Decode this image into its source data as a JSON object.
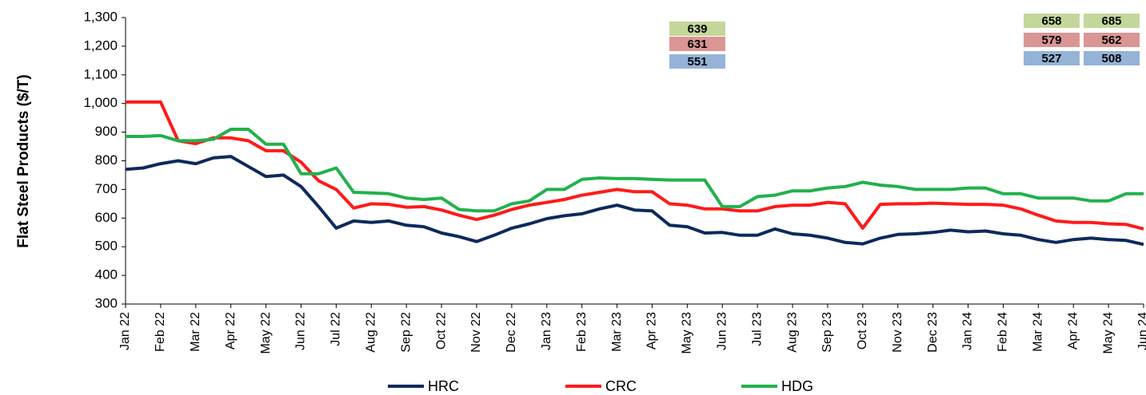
{
  "chart_data": {
    "type": "line",
    "y_label": "Flat Steel Products ($/T)",
    "categories": [
      "Jan 22",
      null,
      "Feb 22",
      null,
      "Mar 22",
      null,
      "Apr 22",
      null,
      "May 22",
      null,
      "Jun 22",
      null,
      "Jul 22",
      null,
      "Aug 22",
      null,
      "Sep 22",
      null,
      "Oct 22",
      null,
      "Nov 22",
      null,
      "Dec 22",
      null,
      "Jan 23",
      null,
      "Feb 23",
      null,
      "Mar 23",
      null,
      "Apr 23",
      null,
      "May 23",
      null,
      "Jun 23",
      null,
      "Jul 23",
      null,
      "Aug 23",
      null,
      "Sep 23",
      null,
      "Oct 23",
      null,
      "Nov 23",
      null,
      "Dec 23",
      null,
      "Jan 24",
      null,
      "Feb 24",
      null,
      "Mar 24",
      null,
      "Apr 24",
      null,
      "May 24",
      null,
      "Jun 24"
    ],
    "series": [
      {
        "name": "HRC",
        "color": "#0d2a5c",
        "values": [
          770,
          775,
          790,
          800,
          790,
          810,
          815,
          780,
          745,
          750,
          710,
          640,
          565,
          590,
          585,
          590,
          575,
          570,
          548,
          535,
          518,
          540,
          565,
          580,
          598,
          608,
          615,
          632,
          645,
          628,
          625,
          575,
          570,
          548,
          550,
          540,
          540,
          562,
          545,
          540,
          530,
          515,
          510,
          530,
          543,
          545,
          550,
          558,
          552,
          555,
          545,
          540,
          525,
          515,
          525,
          530,
          525,
          522,
          508
        ]
      },
      {
        "name": "CRC",
        "color": "#ff1a1a",
        "values": [
          1005,
          1005,
          1005,
          870,
          860,
          880,
          880,
          870,
          835,
          835,
          795,
          730,
          700,
          635,
          650,
          648,
          638,
          640,
          628,
          610,
          595,
          610,
          630,
          645,
          655,
          665,
          680,
          690,
          700,
          692,
          692,
          650,
          645,
          632,
          632,
          625,
          625,
          640,
          645,
          645,
          655,
          650,
          565,
          648,
          650,
          650,
          652,
          650,
          648,
          648,
          645,
          632,
          610,
          590,
          585,
          585,
          580,
          578,
          562
        ]
      },
      {
        "name": "HDG",
        "color": "#22b14c",
        "values": [
          885,
          885,
          888,
          870,
          870,
          875,
          910,
          910,
          858,
          858,
          755,
          755,
          775,
          690,
          688,
          685,
          670,
          665,
          670,
          630,
          625,
          625,
          650,
          660,
          700,
          700,
          735,
          740,
          738,
          738,
          735,
          733,
          733,
          733,
          640,
          640,
          675,
          680,
          695,
          695,
          705,
          710,
          725,
          715,
          710,
          700,
          700,
          700,
          705,
          705,
          685,
          685,
          670,
          670,
          670,
          660,
          660,
          685,
          685
        ]
      }
    ],
    "ylim": [
      300,
      1300
    ],
    "yticks": [
      300,
      400,
      500,
      600,
      700,
      800,
      900,
      {
        "value": 1000,
        "label": "1,000"
      },
      {
        "value": 1100,
        "label": "1,100"
      },
      {
        "value": 1200,
        "label": "1,200"
      },
      {
        "value": 1300,
        "label": "1,300"
      }
    ],
    "annotations": [
      [
        639,
        631,
        551
      ],
      [
        658,
        579,
        527
      ],
      [
        685,
        562,
        508
      ]
    ],
    "annotation_colors": [
      "#c4d79b",
      "#da9694",
      "#95b3d7"
    ],
    "legend": "bottom"
  }
}
